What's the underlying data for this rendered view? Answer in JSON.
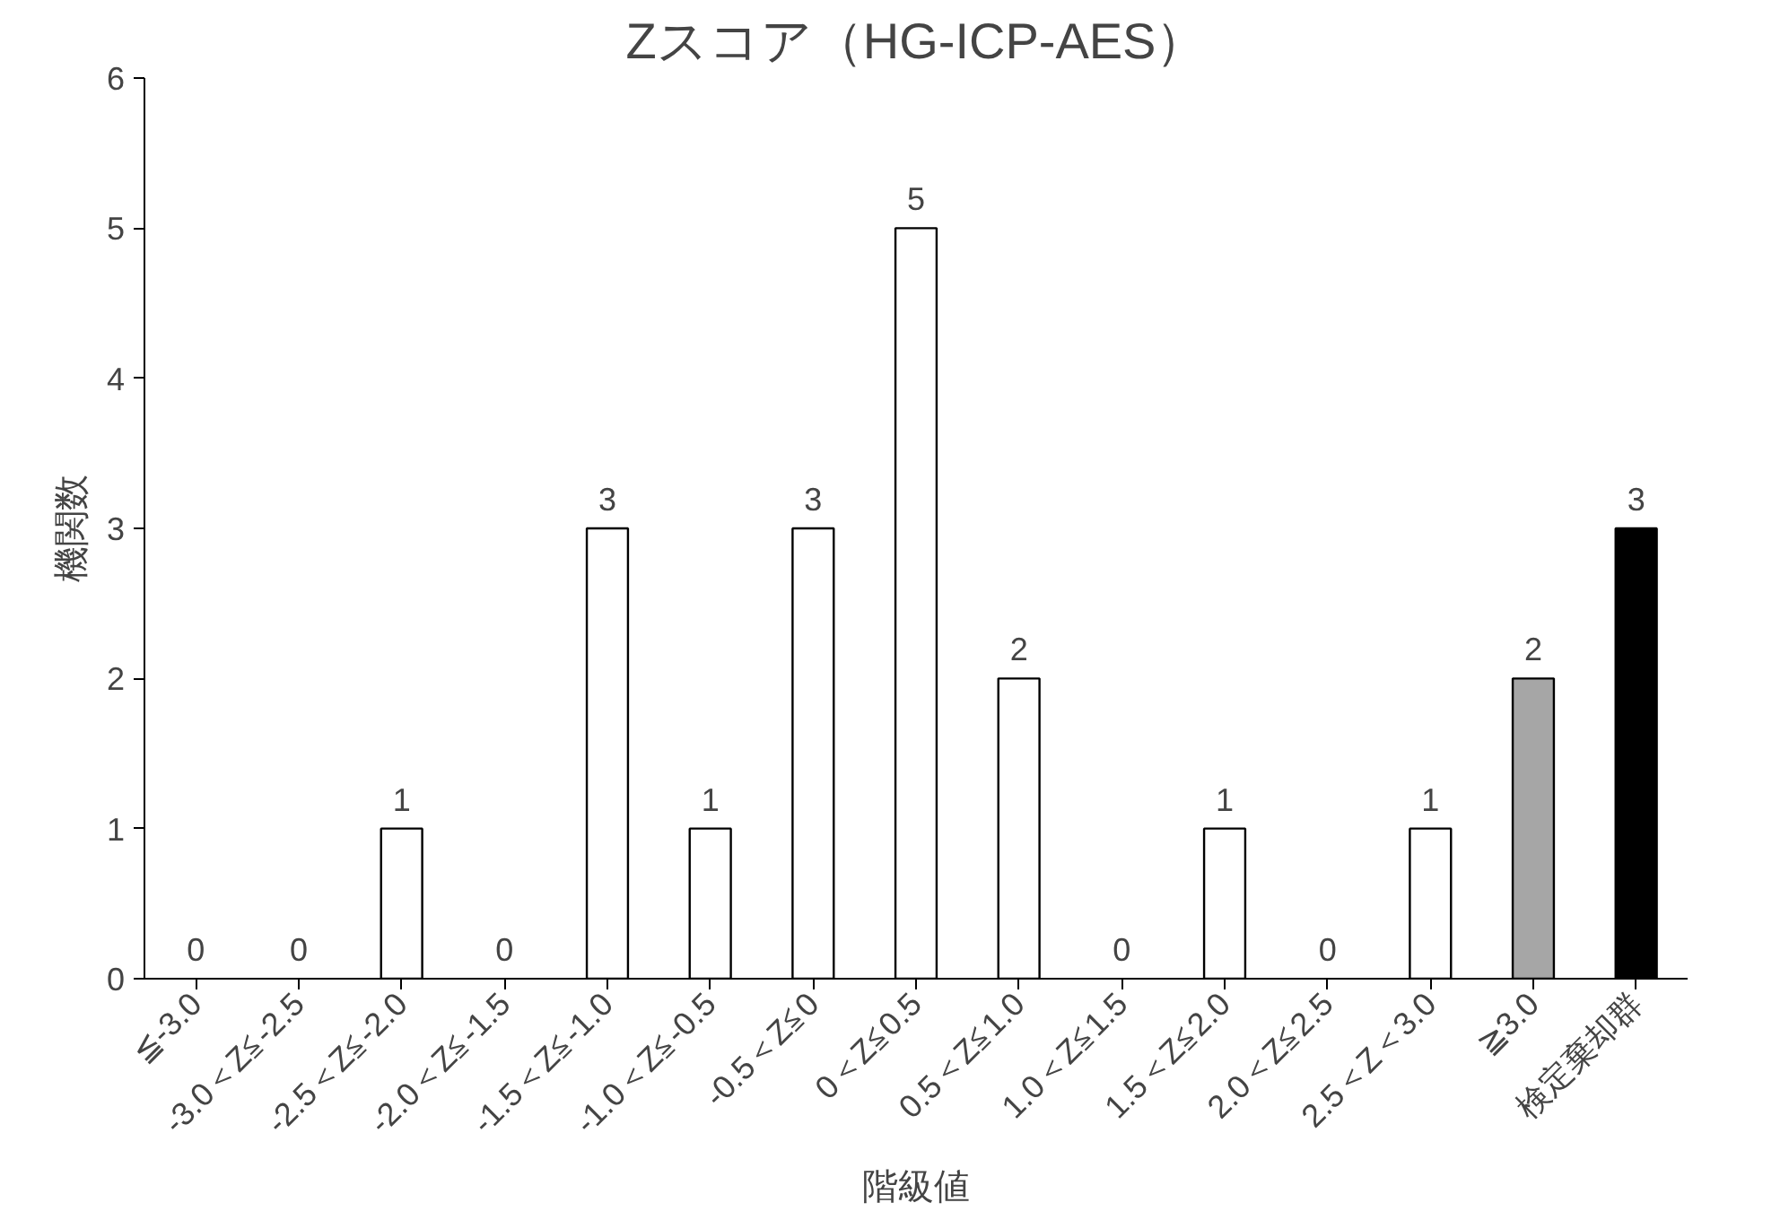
{
  "chart_data": {
    "type": "bar",
    "title": "Zスコア（HG-ICP-AES）",
    "xlabel": "階級値",
    "ylabel": "機関数",
    "categories": [
      "≦-3.0",
      "-3.0＜Z≦-2.5",
      "-2.5＜Z≦-2.0",
      "-2.0＜Z≦-1.5",
      "-1.5＜Z≦-1.0",
      "-1.0＜Z≦-0.5",
      "-0.5＜Z≦0",
      "0＜Z≦0.5",
      "0.5＜Z≦1.0",
      "1.0＜Z≦1.5",
      "1.5＜Z≦2.0",
      "2.0＜Z≦2.5",
      "2.5＜Z＜3.0",
      "≧3.0",
      "検定棄却群"
    ],
    "values": [
      0,
      0,
      1,
      0,
      3,
      1,
      3,
      5,
      2,
      0,
      1,
      0,
      1,
      2,
      3
    ],
    "colors": [
      "#ffffff",
      "#ffffff",
      "#ffffff",
      "#ffffff",
      "#ffffff",
      "#ffffff",
      "#ffffff",
      "#ffffff",
      "#ffffff",
      "#ffffff",
      "#ffffff",
      "#ffffff",
      "#ffffff",
      "#a6a6a6",
      "#000000"
    ],
    "ylim": [
      0,
      6
    ],
    "yticks": [
      0,
      1,
      2,
      3,
      4,
      5,
      6
    ],
    "data_labels": true,
    "grid": false
  }
}
